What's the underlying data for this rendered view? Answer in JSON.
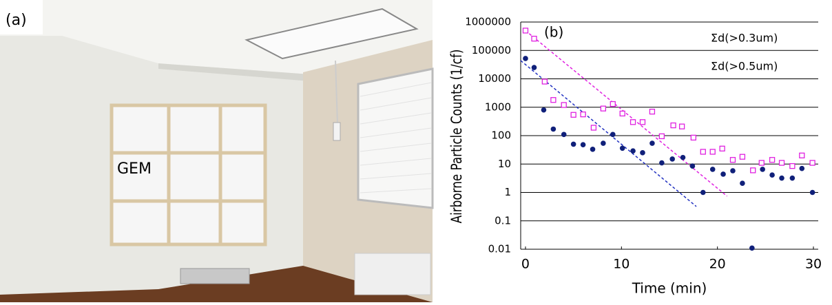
{
  "panel_a": {
    "label": "(a)",
    "annotation": "GEM"
  },
  "chart_data": {
    "type": "scatter",
    "panel_label": "(b)",
    "x_label": "Time (min)",
    "y_label": "Airborne Particle Counts (1/cf)",
    "yscale": "log",
    "xlim": [
      -0.5,
      30.5
    ],
    "ylim": [
      0.01,
      1000000
    ],
    "xticks": [
      0,
      10,
      20,
      30
    ],
    "yticks": [
      0.01,
      0.1,
      1,
      10,
      100,
      1000,
      10000,
      100000,
      1000000
    ],
    "grid": true,
    "series": [
      {
        "name": "Σd(>0.3um)",
        "color": "#e020e0",
        "marker": "square",
        "x": [
          0,
          0.9,
          2,
          2.9,
          4,
          5,
          6,
          7.1,
          8.1,
          9.1,
          10.1,
          11.2,
          12.2,
          13.2,
          14.2,
          15.4,
          16.3,
          17.5,
          18.5,
          19.5,
          20.5,
          21.6,
          22.6,
          23.7,
          24.6,
          25.7,
          26.7,
          27.8,
          28.8,
          29.9
        ],
        "values": [
          500000,
          260000,
          8000,
          1800,
          1200,
          540,
          560,
          190,
          900,
          1300,
          600,
          300,
          300,
          700,
          95,
          230,
          210,
          85,
          27,
          27,
          35,
          14,
          18,
          6,
          11,
          14,
          11,
          8.5,
          20,
          11
        ]
      },
      {
        "name": "Σd(>0.5um)",
        "color": "#10207a",
        "marker": "circle",
        "x": [
          0,
          0.9,
          1.9,
          2.9,
          4,
          5,
          6,
          7,
          8.1,
          9.1,
          10.1,
          11.2,
          12.2,
          13.2,
          14.2,
          15.3,
          16.4,
          17.4,
          18.5,
          19.5,
          20.6,
          21.6,
          22.6,
          23.6,
          24.7,
          25.7,
          26.7,
          27.8,
          28.8,
          29.9
        ],
        "values": [
          52000,
          25000,
          800,
          170,
          110,
          50,
          48,
          33,
          54,
          110,
          36,
          29,
          25,
          54,
          11,
          15,
          17,
          8.5,
          1,
          6.5,
          4.4,
          5.8,
          2.1,
          0.011,
          6.5,
          4.1,
          3.2,
          3.2,
          7,
          1
        ]
      }
    ],
    "trendlines": [
      {
        "color": "#e020e0",
        "x": [
          0,
          21
        ],
        "values": [
          500000,
          0.74
        ]
      },
      {
        "color": "#2030c0",
        "x": [
          -0.5,
          17.8
        ],
        "values": [
          44000,
          0.32
        ]
      }
    ]
  }
}
